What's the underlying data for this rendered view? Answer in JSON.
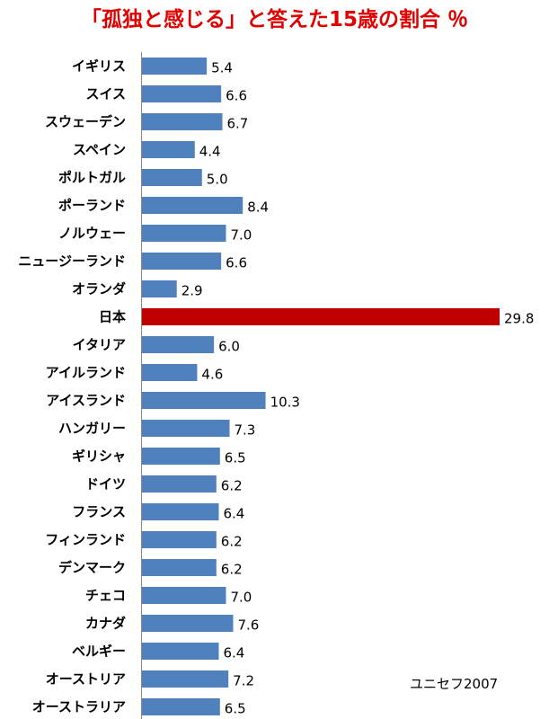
{
  "chart_data": {
    "type": "bar",
    "orientation": "horizontal",
    "title": "「孤独と感じる」と答えた15歳の割合 ％",
    "source": "ユニセフ2007",
    "categories": [
      "イギリス",
      "スイス",
      "スウェーデン",
      "スペイン",
      "ポルトガル",
      "ポーランド",
      "ノルウェー",
      "ニュージーランド",
      "オランダ",
      "日本",
      "イタリア",
      "アイルランド",
      "アイスランド",
      "ハンガリー",
      "ギリシャ",
      "ドイツ",
      "フランス",
      "フィンランド",
      "デンマーク",
      "チェコ",
      "カナダ",
      "ベルギー",
      "オーストリア",
      "オーストラリア"
    ],
    "values": [
      5.4,
      6.6,
      6.7,
      4.4,
      5.0,
      8.4,
      7.0,
      6.6,
      2.9,
      29.8,
      6.0,
      4.6,
      10.3,
      7.3,
      6.5,
      6.2,
      6.4,
      6.2,
      6.2,
      7.0,
      7.6,
      6.4,
      7.2,
      6.5
    ],
    "value_labels": [
      "5.4",
      "6.6",
      "6.7",
      "4.4",
      "5.0",
      "8.4",
      "7.0",
      "6.6",
      "2.9",
      "29.8",
      "6.0",
      "4.6",
      "10.3",
      "7.3",
      "6.5",
      "6.2",
      "6.4",
      "6.2",
      "6.2",
      "7.0",
      "7.6",
      "6.4",
      "7.2",
      "6.5"
    ],
    "xlim": [
      0,
      29.8
    ],
    "grid": false,
    "colors": {
      "bar": "#4f81bd",
      "highlight": "#c00000",
      "title": "#e00000"
    },
    "highlight_category": "日本"
  }
}
